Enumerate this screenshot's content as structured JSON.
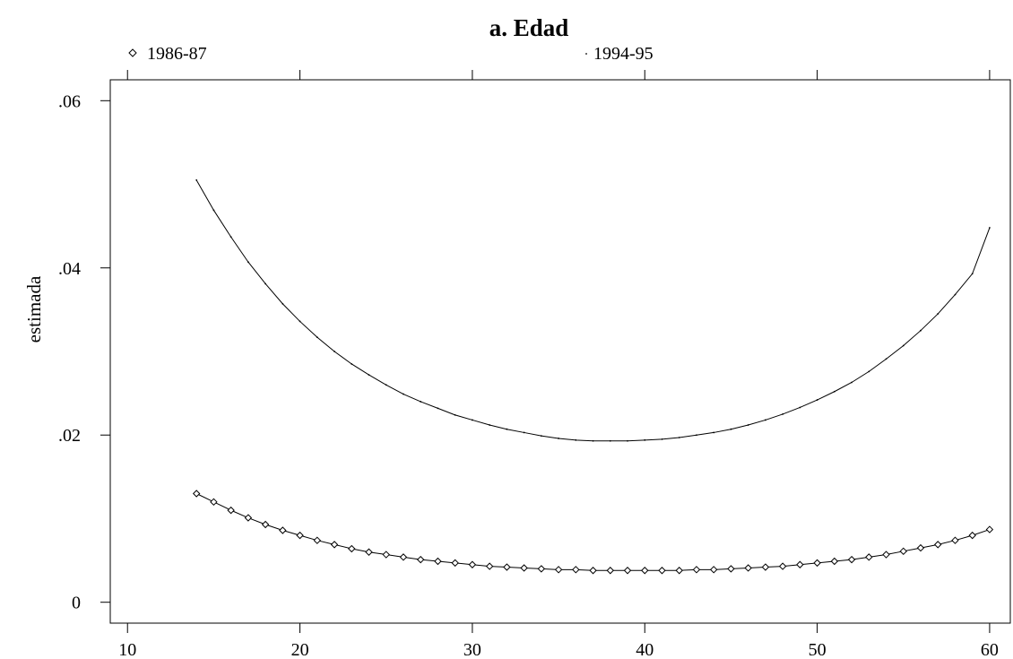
{
  "chart_data": {
    "type": "line",
    "title": "a. Edad",
    "xlabel": "",
    "ylabel": "estimada",
    "xlim": [
      9,
      61.2
    ],
    "ylim": [
      -0.0025,
      0.0625
    ],
    "x_ticks": [
      10,
      20,
      30,
      40,
      50,
      60
    ],
    "x_tick_labels": [
      "10",
      "20",
      "30",
      "40",
      "50",
      "60"
    ],
    "y_ticks": [
      0,
      0.02,
      0.04,
      0.06
    ],
    "y_tick_labels": [
      "0",
      ".02",
      ".04",
      ".06"
    ],
    "grid": false,
    "legend_position": "top",
    "x": [
      14,
      15,
      16,
      17,
      18,
      19,
      20,
      21,
      22,
      23,
      24,
      25,
      26,
      27,
      28,
      29,
      30,
      31,
      32,
      33,
      34,
      35,
      36,
      37,
      38,
      39,
      40,
      41,
      42,
      43,
      44,
      45,
      46,
      47,
      48,
      49,
      50,
      51,
      52,
      53,
      54,
      55,
      56,
      57,
      58,
      59,
      60
    ],
    "series": [
      {
        "name": "1986-87",
        "marker": "diamond",
        "values": [
          0.013,
          0.012,
          0.011,
          0.0101,
          0.0093,
          0.0086,
          0.008,
          0.0074,
          0.0069,
          0.0064,
          0.006,
          0.0057,
          0.0054,
          0.0051,
          0.0049,
          0.0047,
          0.0045,
          0.0043,
          0.0042,
          0.0041,
          0.004,
          0.0039,
          0.0039,
          0.0038,
          0.0038,
          0.0038,
          0.0038,
          0.0038,
          0.0038,
          0.0039,
          0.0039,
          0.004,
          0.0041,
          0.0042,
          0.0043,
          0.0045,
          0.0047,
          0.0049,
          0.0051,
          0.0054,
          0.0057,
          0.0061,
          0.0065,
          0.0069,
          0.0074,
          0.008,
          0.0087
        ]
      },
      {
        "name": "1994-95",
        "marker": "dot",
        "values": [
          0.0505,
          0.0469,
          0.0437,
          0.0407,
          0.0381,
          0.0357,
          0.0336,
          0.0317,
          0.03,
          0.0285,
          0.0272,
          0.026,
          0.0249,
          0.024,
          0.0232,
          0.0224,
          0.0218,
          0.0212,
          0.0207,
          0.0203,
          0.0199,
          0.0196,
          0.0194,
          0.0193,
          0.0193,
          0.0193,
          0.0194,
          0.0195,
          0.0197,
          0.02,
          0.0203,
          0.0207,
          0.0212,
          0.0218,
          0.0225,
          0.0233,
          0.0242,
          0.0252,
          0.0263,
          0.0276,
          0.0291,
          0.0307,
          0.0325,
          0.0345,
          0.0368,
          0.0393,
          0.0448
        ]
      }
    ]
  }
}
